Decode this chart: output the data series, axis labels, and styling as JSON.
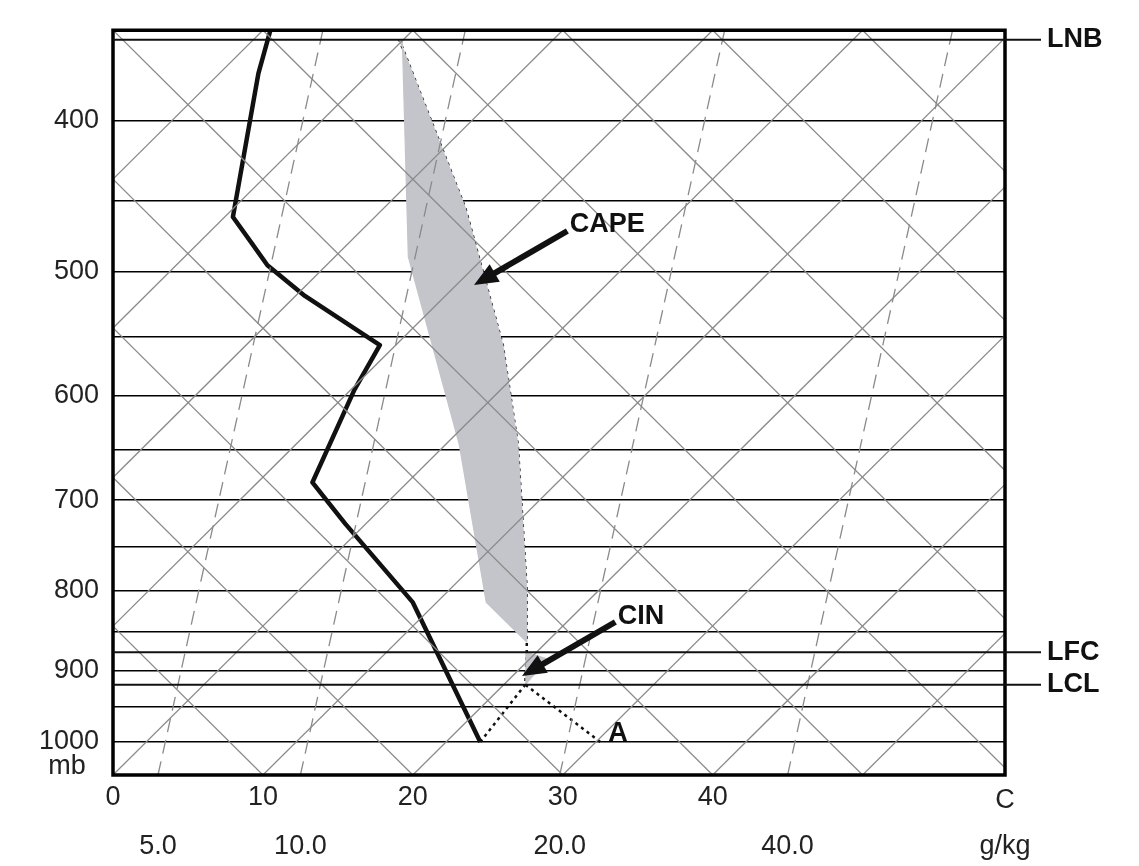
{
  "chart_data": {
    "type": "line",
    "xlabel": "C",
    "ylabel": "mb",
    "xlim": [
      0,
      59.5
    ],
    "xticks": [
      0,
      10,
      20,
      30,
      40
    ],
    "ylim": [
      1050,
      350
    ],
    "log": "y",
    "yticks": [
      1000,
      {
        "value": 950,
        "label": null
      },
      900,
      {
        "value": 850,
        "label": null
      },
      800,
      {
        "value": 750,
        "label": null
      },
      700,
      {
        "value": 650,
        "label": null
      },
      600,
      {
        "value": 550,
        "label": null
      },
      500,
      {
        "value": 450,
        "label": null
      },
      400
    ],
    "grid": "y",
    "legend": false,
    "marker": "none",
    "series": [
      {
        "color": "#8a8a8a",
        "x": [
          0,
          10
        ],
        "values": [
          436,
          350
        ]
      },
      {
        "color": "#8a8a8a",
        "x": [
          0,
          20
        ],
        "values": [
          543,
          350
        ]
      },
      {
        "color": "#8a8a8a",
        "x": [
          0,
          30
        ],
        "values": [
          677,
          350
        ]
      },
      {
        "color": "#8a8a8a",
        "x": [
          0,
          40
        ],
        "values": [
          843,
          350
        ]
      },
      {
        "color": "#8a8a8a",
        "x": [
          0,
          50
        ],
        "values": [
          1050,
          350
        ]
      },
      {
        "color": "#8a8a8a",
        "x": [
          10,
          59.5
        ],
        "values": [
          1050,
          354
        ]
      },
      {
        "color": "#8a8a8a",
        "x": [
          20,
          59.5
        ],
        "values": [
          1050,
          441
        ]
      },
      {
        "color": "#8a8a8a",
        "x": [
          30,
          59.5
        ],
        "values": [
          1050,
          549
        ]
      },
      {
        "color": "#8a8a8a",
        "x": [
          40,
          59.5
        ],
        "values": [
          1050,
          684
        ]
      },
      {
        "color": "#8a8a8a",
        "x": [
          50,
          59.5
        ],
        "values": [
          1050,
          852
        ]
      },
      {
        "color": "#8a8a8a",
        "x": [
          10,
          0
        ],
        "values": [
          1050,
          843
        ]
      },
      {
        "color": "#8a8a8a",
        "x": [
          20,
          0
        ],
        "values": [
          1050,
          677
        ]
      },
      {
        "color": "#8a8a8a",
        "x": [
          30,
          0
        ],
        "values": [
          1050,
          543
        ]
      },
      {
        "color": "#8a8a8a",
        "x": [
          40,
          0
        ],
        "values": [
          1050,
          436
        ]
      },
      {
        "color": "#8a8a8a",
        "x": [
          50,
          0
        ],
        "values": [
          1050,
          350
        ]
      },
      {
        "color": "#8a8a8a",
        "x": [
          59.5,
          10
        ],
        "values": [
          1039,
          350
        ]
      },
      {
        "color": "#8a8a8a",
        "x": [
          59.5,
          20
        ],
        "values": [
          834,
          350
        ]
      },
      {
        "color": "#8a8a8a",
        "x": [
          59.5,
          30
        ],
        "values": [
          670,
          350
        ]
      },
      {
        "color": "#8a8a8a",
        "x": [
          59.5,
          40
        ],
        "values": [
          537,
          350
        ]
      },
      {
        "color": "#8a8a8a",
        "x": [
          59.5,
          50
        ],
        "values": [
          431,
          350
        ]
      },
      {
        "name": "5.0",
        "color": "#8a8a8a",
        "line_style": "dashed",
        "x": [
          3,
          14
        ],
        "values": [
          1050,
          350
        ]
      },
      {
        "name": "10.0",
        "color": "#8a8a8a",
        "line_style": "dashed",
        "x": [
          12.5,
          23.5
        ],
        "values": [
          1050,
          350
        ]
      },
      {
        "name": "20.0",
        "color": "#8a8a8a",
        "line_style": "dashed",
        "x": [
          29.8,
          40.8
        ],
        "values": [
          1050,
          350
        ]
      },
      {
        "name": "40.0",
        "color": "#8a8a8a",
        "line_style": "dashed",
        "x": [
          45,
          56
        ],
        "values": [
          1050,
          350
        ]
      },
      {
        "type": "area",
        "color": "#c4c5cb",
        "x": [
          19.1,
          23.5,
          26,
          27,
          27.6,
          27.6,
          24.9,
          23.1,
          19.7,
          19.3
        ],
        "values": [
          355,
          455,
          557,
          645,
          800,
          863,
          814,
          645,
          489,
          355
        ]
      },
      {
        "type": "area",
        "color": "#c4c5cb",
        "x": [
          27.5,
          29,
          27.5
        ],
        "values": [
          876,
          885,
          919
        ]
      },
      {
        "color": "#111111",
        "x": [
          10.5,
          9.7,
          8,
          10.3,
          12.8,
          17.8,
          16.1,
          13.3,
          15.5,
          20,
          24.5
        ],
        "values": [
          350,
          373,
          461,
          495,
          518,
          557,
          595,
          682,
          725,
          814,
          1000
        ]
      },
      {
        "color": "#111111",
        "line_style": "dotted",
        "x": [
          32.5,
          27.5,
          27.6,
          27.6,
          27,
          26,
          23.5,
          19.1
        ],
        "values": [
          1000,
          919,
          876,
          800,
          645,
          557,
          455,
          355
        ]
      },
      {
        "color": "#111111",
        "line_style": "dotted",
        "x": [
          24.5,
          27.5
        ],
        "values": [
          1000,
          919
        ]
      }
    ],
    "ref_lines": [
      {
        "axis": "y",
        "value": 355,
        "label": "LNB"
      },
      {
        "axis": "y",
        "value": 876,
        "label": "LFC"
      },
      {
        "axis": "y",
        "value": 919,
        "label": "LCL"
      }
    ],
    "annotations": [
      {
        "text": "CAPE",
        "x": 24.8,
        "y": 505
      },
      {
        "text": "CIN",
        "x": 28,
        "y": 900
      },
      {
        "text": "A",
        "x": 32.5,
        "y": 1000
      },
      "g/kg"
    ]
  }
}
